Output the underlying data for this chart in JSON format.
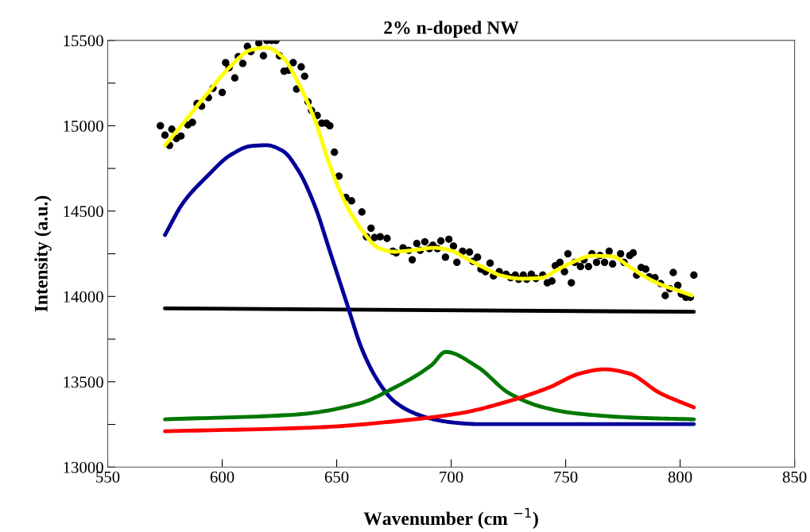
{
  "chart_data": {
    "type": "line",
    "title": "2% n-doped NW",
    "xlabel": "Wavenumber (cm $^{−1}$)",
    "ylabel": "Intensity (a.u.)",
    "xlim": [
      550,
      850
    ],
    "xticks": [
      550,
      600,
      650,
      700,
      750,
      800,
      850
    ],
    "ylim": [
      13000,
      15500
    ],
    "yticks": [
      13000,
      {
        "value": 13250,
        "label": null
      },
      13500,
      {
        "value": 13750,
        "label": null
      },
      14000,
      {
        "value": 14250,
        "label": null
      },
      14500,
      {
        "value": 14750,
        "label": null
      },
      15000,
      {
        "value": 15250,
        "label": null
      },
      15500
    ],
    "grid": false,
    "line_style": "solid",
    "series": [
      {
        "type": "scatter",
        "color": "#000000",
        "x": [
          573,
          575,
          577,
          578,
          580,
          582,
          585,
          587,
          589,
          591,
          594,
          596,
          600,
          601.5,
          603,
          605.5,
          607,
          609,
          611,
          612.5,
          616,
          618,
          619.5,
          621.5,
          623.5,
          625,
          627,
          629,
          631,
          632.5,
          634.5,
          636,
          637.5,
          639,
          641.5,
          643.5,
          645.5,
          647,
          649,
          651,
          654,
          656.5,
          661,
          663,
          665,
          666.5,
          669,
          672,
          674.5,
          676,
          679,
          681.5,
          683,
          685,
          686.5,
          688.5,
          690.5,
          692,
          694,
          695.5,
          697.5,
          699,
          701,
          702.5,
          705,
          708,
          709.5,
          711.5,
          713,
          715,
          717,
          718.5,
          721,
          724,
          726,
          728,
          729.5,
          731.5,
          733,
          735,
          737,
          740,
          742,
          744,
          745.5,
          747.5,
          749.5,
          751,
          752.5,
          754,
          756.5,
          758,
          760,
          761.5,
          763.5,
          765,
          767,
          769,
          770.5,
          774,
          775.5,
          778,
          779.5,
          781,
          783,
          785,
          786.5,
          789,
          791.5,
          793.5,
          795.5,
          797,
          799,
          800.5,
          802.5,
          804.5,
          806
        ],
        "values": [
          15000,
          14945,
          14885,
          14980,
          14925,
          14940,
          15005,
          15020,
          15130,
          15115,
          15165,
          15220,
          15195,
          15370,
          15340,
          15280,
          15405,
          15365,
          15465,
          15435,
          15485,
          15410,
          15500,
          15500,
          15500,
          15410,
          15320,
          15325,
          15370,
          15215,
          15345,
          15290,
          15140,
          15090,
          15060,
          15015,
          15015,
          15000,
          14845,
          14705,
          14580,
          14560,
          14495,
          14350,
          14400,
          14345,
          14350,
          14340,
          14265,
          14255,
          14285,
          14270,
          14215,
          14310,
          14270,
          14320,
          14280,
          14300,
          14280,
          14325,
          14230,
          14335,
          14295,
          14200,
          14265,
          14260,
          14205,
          14230,
          14160,
          14145,
          14195,
          14120,
          14145,
          14130,
          14110,
          14125,
          14100,
          14125,
          14100,
          14130,
          14105,
          14125,
          14080,
          14090,
          14180,
          14200,
          14145,
          14250,
          14080,
          14200,
          14175,
          14215,
          14175,
          14250,
          14200,
          14240,
          14200,
          14265,
          14190,
          14250,
          14200,
          14240,
          14255,
          14125,
          14170,
          14160,
          14115,
          14110,
          14075,
          14005,
          14045,
          14140,
          14065,
          14015,
          13995,
          13995,
          14125
        ]
      },
      {
        "color": "#000000",
        "x": [
          575,
          806
        ],
        "values": [
          13930,
          13910
        ]
      },
      {
        "color": "#000099",
        "x": [
          575,
          583,
          593.4,
          603.8,
          612.5,
          619.4,
          626.4,
          633.3,
          640.3,
          647.2,
          654.2,
          661.1,
          668.1,
          675,
          683.7,
          692.4,
          701,
          711.5,
          729,
          806
        ],
        "values": [
          14360,
          14550,
          14704,
          14830,
          14881,
          14886,
          14853,
          14737,
          14536,
          14257,
          13969,
          13689,
          13503,
          13387,
          13317,
          13280,
          13261,
          13252,
          13252,
          13252
        ]
      },
      {
        "color": "#007700",
        "x": [
          575,
          632.3,
          660,
          674,
          691.3,
          697.6,
          711.5,
          725.3,
          739.2,
          753.1,
          781,
          806
        ],
        "values": [
          13280,
          13308,
          13373,
          13457,
          13596,
          13675,
          13587,
          13433,
          13354,
          13317,
          13289,
          13280
        ]
      },
      {
        "color": "#ff0000",
        "x": [
          575,
          642,
          676.7,
          704.5,
          725.3,
          742.7,
          756.6,
          767,
          777.4,
          791.3,
          806
        ],
        "values": [
          13210,
          13233,
          13270,
          13317,
          13387,
          13466,
          13550,
          13573,
          13550,
          13433,
          13350
        ]
      },
      {
        "color": "#ffff00",
        "x": [
          575,
          583,
          593.4,
          603.8,
          612.5,
          619.4,
          626.4,
          633.3,
          640.3,
          647.2,
          654.2,
          661.1,
          668.1,
          675,
          683.7,
          692.4,
          699.3,
          706.3,
          715,
          721.9,
          730.6,
          739.2,
          746.2,
          753.1,
          761.8,
          770.5,
          777.4,
          784.4,
          791.3,
          798.3,
          805.2
        ],
        "values": [
          14885,
          15015,
          15188,
          15351,
          15444,
          15458,
          15402,
          15249,
          15039,
          14760,
          14536,
          14387,
          14285,
          14262,
          14271,
          14285,
          14271,
          14225,
          14164,
          14122,
          14104,
          14108,
          14155,
          14201,
          14238,
          14234,
          14178,
          14117,
          14071,
          14038,
          14006
        ]
      }
    ]
  }
}
